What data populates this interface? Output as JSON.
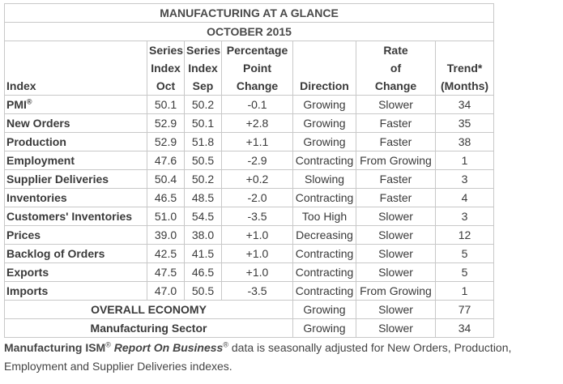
{
  "title": "MANUFACTURING AT A GLANCE",
  "subtitle": "OCTOBER 2015",
  "headers": {
    "index": "Index",
    "series_oct": [
      "Series",
      "Index",
      "Oct"
    ],
    "series_sep": [
      "Series",
      "Index",
      "Sep"
    ],
    "pct_change": [
      "Percentage",
      "Point",
      "Change"
    ],
    "direction": "Direction",
    "rate": [
      "Rate",
      "of",
      "Change"
    ],
    "trend": [
      "Trend*",
      "(Months)"
    ]
  },
  "rows": [
    {
      "name": "PMI",
      "sup": "®",
      "oct": "50.1",
      "sep": "50.2",
      "change": "-0.1",
      "direction": "Growing",
      "rate": "Slower",
      "trend": "34"
    },
    {
      "name": "New Orders",
      "sup": "",
      "oct": "52.9",
      "sep": "50.1",
      "change": "+2.8",
      "direction": "Growing",
      "rate": "Faster",
      "trend": "35"
    },
    {
      "name": "Production",
      "sup": "",
      "oct": "52.9",
      "sep": "51.8",
      "change": "+1.1",
      "direction": "Growing",
      "rate": "Faster",
      "trend": "38"
    },
    {
      "name": "Employment",
      "sup": "",
      "oct": "47.6",
      "sep": "50.5",
      "change": "-2.9",
      "direction": "Contracting",
      "rate": "From Growing",
      "trend": "1"
    },
    {
      "name": "Supplier Deliveries",
      "sup": "",
      "oct": "50.4",
      "sep": "50.2",
      "change": "+0.2",
      "direction": "Slowing",
      "rate": "Faster",
      "trend": "3"
    },
    {
      "name": "Inventories",
      "sup": "",
      "oct": "46.5",
      "sep": "48.5",
      "change": "-2.0",
      "direction": "Contracting",
      "rate": "Faster",
      "trend": "4"
    },
    {
      "name": "Customers' Inventories",
      "sup": "",
      "oct": "51.0",
      "sep": "54.5",
      "change": "-3.5",
      "direction": "Too High",
      "rate": "Slower",
      "trend": "3"
    },
    {
      "name": "Prices",
      "sup": "",
      "oct": "39.0",
      "sep": "38.0",
      "change": "+1.0",
      "direction": "Decreasing",
      "rate": "Slower",
      "trend": "12"
    },
    {
      "name": "Backlog of Orders",
      "sup": "",
      "oct": "42.5",
      "sep": "41.5",
      "change": "+1.0",
      "direction": "Contracting",
      "rate": "Slower",
      "trend": "5"
    },
    {
      "name": "Exports",
      "sup": "",
      "oct": "47.5",
      "sep": "46.5",
      "change": "+1.0",
      "direction": "Contracting",
      "rate": "Slower",
      "trend": "5"
    },
    {
      "name": "Imports",
      "sup": "",
      "oct": "47.0",
      "sep": "50.5",
      "change": "-3.5",
      "direction": "Contracting",
      "rate": "From Growing",
      "trend": "1"
    }
  ],
  "summary": [
    {
      "name": "OVERALL ECONOMY",
      "direction": "Growing",
      "rate": "Slower",
      "trend": "77"
    },
    {
      "name": "Manufacturing Sector",
      "direction": "Growing",
      "rate": "Slower",
      "trend": "34"
    }
  ],
  "footnote": {
    "part1": "Manufacturing ISM",
    "sup1": "®",
    "part2": "Report On Business",
    "sup2": "®",
    "part3": " data is seasonally adjusted for New Orders, Production,",
    "line2": "Employment and Supplier Deliveries indexes."
  }
}
